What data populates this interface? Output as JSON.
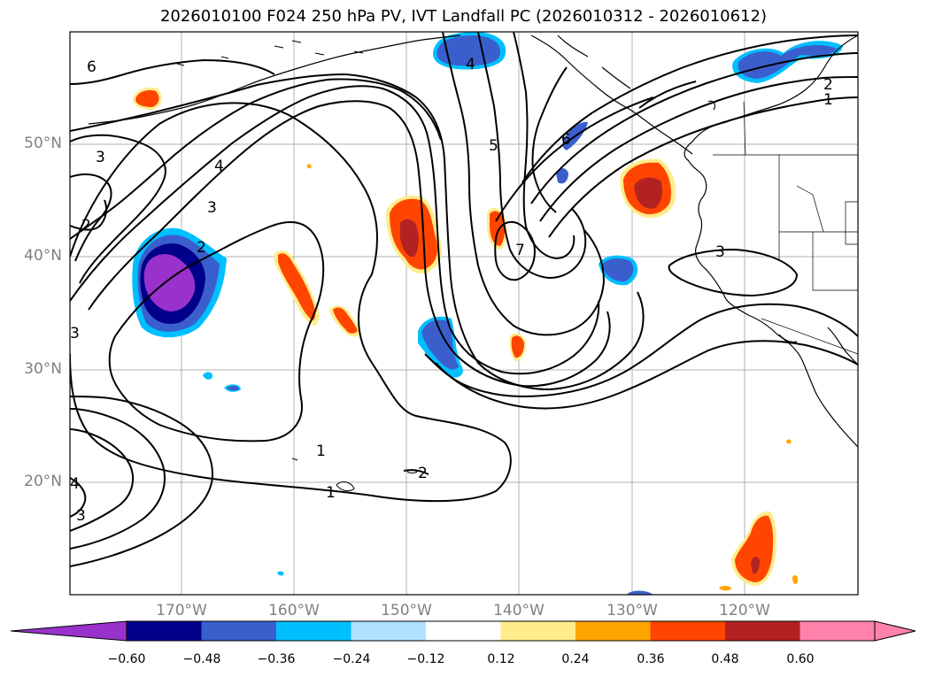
{
  "title": "2026010100 F024 250 hPa PV, IVT Landfall PC (2026010312 - 2026010612)",
  "lat_labels": [
    "50°N",
    "40°N",
    "30°N",
    "20°N"
  ],
  "lon_labels": [
    "170°W",
    "160°W",
    "150°W",
    "140°W",
    "130°W",
    "120°W"
  ],
  "contour_labels": [
    "6",
    "3",
    "2",
    "4",
    "3",
    "2",
    "1",
    "1",
    "2",
    "5",
    "6",
    "7",
    "4",
    "2",
    "1",
    "3",
    "3",
    "4",
    "3"
  ],
  "colorbar": {
    "ticks": [
      "−0.60",
      "−0.48",
      "−0.36",
      "−0.24",
      "−0.12",
      "0.12",
      "0.24",
      "0.36",
      "0.48",
      "0.60"
    ],
    "colors": [
      "#9932cc",
      "#00008b",
      "#3a5fcd",
      "#00bfff",
      "#b0e2ff",
      "#ffffff",
      "#ffec8b",
      "#ffa500",
      "#ff4500",
      "#b22222",
      "#ff82ab",
      "#ff82ab"
    ]
  },
  "fill_colors": {
    "neg_outer": "#b0e2ff",
    "neg_mid": "#00bfff",
    "neg_strong": "#3a5fcd",
    "neg_deep": "#00008b",
    "neg_core": "#9932cc",
    "pos_outer": "#ffec8b",
    "pos_mid": "#ffa500",
    "pos_strong": "#ff4500",
    "pos_core": "#b22222"
  }
}
